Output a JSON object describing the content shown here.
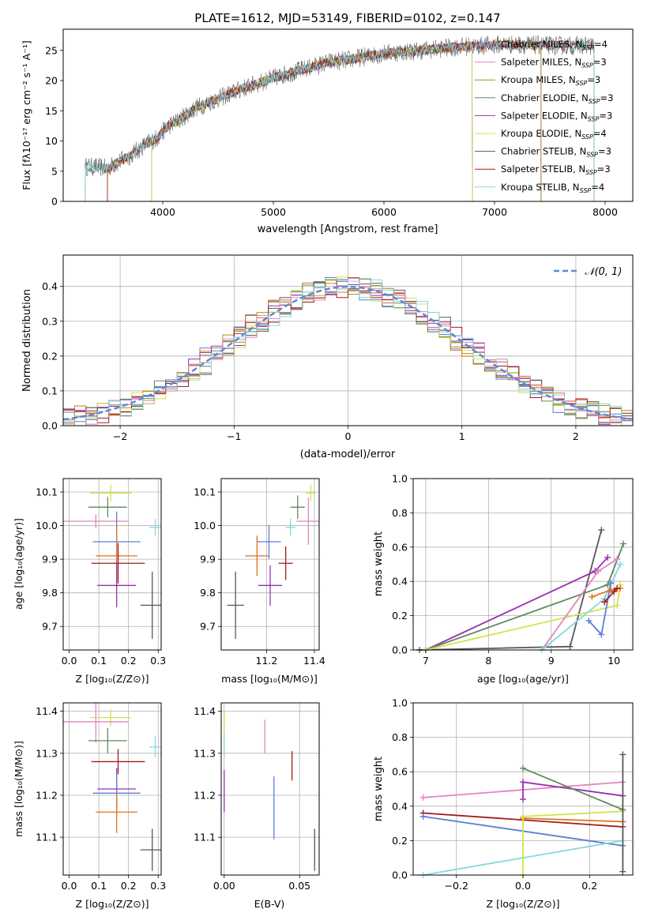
{
  "colors": {
    "blue": "#5B7FD6",
    "orange": "#E0721B",
    "olive": "#A89010",
    "green": "#5E8A5E",
    "purple": "#9A2FB0",
    "yellow": "#D2E24C",
    "gray": "#585858",
    "red": "#A61A1A",
    "pink": "#E384BE",
    "cyan": "#86D8DD",
    "brown": "#8B5A3C",
    "normal": "#5B8AD6"
  },
  "chart_data": [
    {
      "id": "spectrum",
      "type": "line",
      "title": "PLATE=1612, MJD=53149, FIBERID=0102, z=0.147",
      "xlabel": "wavelength [Angstrom, rest frame]",
      "ylabel": "Flux [fλ10⁻¹⁷ erg cm⁻² s⁻¹ A⁻¹]",
      "xlim": [
        3100,
        8250
      ],
      "ylim": [
        0,
        28.5
      ],
      "xticks": [
        4000,
        5000,
        6000,
        7000,
        8000
      ],
      "yticks": [
        0,
        5,
        10,
        15,
        20,
        25
      ],
      "legend_position": "top-right",
      "continuum": {
        "x": [
          3300,
          3500,
          3700,
          3850,
          3950,
          4050,
          4150,
          4300,
          4500,
          4700,
          4900,
          5100,
          5300,
          5500,
          5700,
          5900,
          6100,
          6300,
          6500,
          6700,
          6900,
          7100,
          7300,
          7500
        ],
        "y": [
          5.8,
          5.5,
          7.5,
          9.5,
          10.5,
          12.5,
          13.5,
          15.5,
          17.0,
          18.5,
          19.8,
          21.0,
          22.0,
          23.0,
          23.5,
          24.2,
          24.7,
          24.9,
          25.3,
          25.6,
          25.8,
          26.0,
          25.9,
          25.8
        ]
      },
      "models": [
        {
          "name": "Chabrier MILES, N$_{SSP}$=4",
          "label_main": "Chabrier MILES, N",
          "label_sub": "SSP",
          "label_tail": "=4",
          "color_key": "blue",
          "range": [
            3500,
            7420
          ]
        },
        {
          "name": "Salpeter MILES, N$_{SSP}$=3",
          "label_main": "Salpeter MILES, N",
          "label_sub": "SSP",
          "label_tail": "=3",
          "color_key": "pink",
          "range": [
            3500,
            7420
          ]
        },
        {
          "name": "Kroupa MILES, N$_{SSP}$=3",
          "label_main": "Kroupa MILES, N",
          "label_sub": "SSP",
          "label_tail": "=3",
          "color_key": "olive",
          "range": [
            3500,
            7420
          ]
        },
        {
          "name": "Chabrier ELODIE, N$_{SSP}$=3",
          "label_main": "Chabrier ELODIE, N",
          "label_sub": "SSP",
          "label_tail": "=3",
          "color_key": "green",
          "range": [
            3900,
            6800
          ]
        },
        {
          "name": "Salpeter ELODIE, N$_{SSP}$=3",
          "label_main": "Salpeter ELODIE, N",
          "label_sub": "SSP",
          "label_tail": "=3",
          "color_key": "purple",
          "range": [
            3900,
            6800
          ]
        },
        {
          "name": "Kroupa ELODIE, N$_{SSP}$=4",
          "label_main": "Kroupa ELODIE, N",
          "label_sub": "SSP",
          "label_tail": "=4",
          "color_key": "yellow",
          "range": [
            3900,
            6800
          ]
        },
        {
          "name": "Chabrier STELIB, N$_{SSP}$=3",
          "label_main": "Chabrier STELIB, N",
          "label_sub": "SSP",
          "label_tail": "=3",
          "color_key": "gray",
          "range": [
            3300,
            7900
          ]
        },
        {
          "name": "Salpeter STELIB, N$_{SSP}$=3",
          "label_main": "Salpeter STELIB, N",
          "label_sub": "SSP",
          "label_tail": "=3",
          "color_key": "red",
          "range": [
            3500,
            7900
          ]
        },
        {
          "name": "Kroupa STELIB, N$_{SSP}$=4",
          "label_main": "Kroupa STELIB, N",
          "label_sub": "SSP",
          "label_tail": "=4",
          "color_key": "cyan",
          "range": [
            3300,
            7900
          ]
        }
      ]
    },
    {
      "id": "residuals",
      "type": "histogram",
      "xlabel": "(data-model)/error",
      "ylabel": "Normed distribution",
      "xlim": [
        -2.5,
        2.5
      ],
      "ylim": [
        0,
        0.49
      ],
      "xticks": [
        -2,
        -1,
        0,
        1,
        2
      ],
      "yticks": [
        0.0,
        0.1,
        0.2,
        0.3,
        0.4
      ],
      "grid": true,
      "legend_position": "top-right",
      "reference_curve": {
        "name": "N(0,1)",
        "label": "𝒩(0, 1)",
        "mean": 0,
        "sigma": 1,
        "color_key": "normal"
      },
      "bin_width": 0.1
    },
    {
      "id": "age-vs-Z",
      "type": "errorbar",
      "xlabel": "Z [log₁₀(Z/Z⊙)]",
      "ylabel": "age  [log₁₀(age/yr)]",
      "xlim": [
        -0.02,
        0.31
      ],
      "ylim": [
        9.63,
        10.14
      ],
      "xticks": [
        0.0,
        0.1,
        0.2,
        0.3
      ],
      "yticks": [
        9.7,
        9.8,
        9.9,
        10.0,
        10.1
      ],
      "grid": true,
      "points": [
        {
          "color_key": "yellow",
          "x": 0.14,
          "xerr": 0.07,
          "y": 10.097,
          "yerr": 0.025
        },
        {
          "color_key": "green",
          "x": 0.13,
          "xerr": 0.065,
          "y": 10.055,
          "yerr": 0.03
        },
        {
          "color_key": "pink",
          "x": 0.09,
          "xerr": 0.11,
          "y": 10.013,
          "yerr": 0.02
        },
        {
          "color_key": "cyan",
          "x": 0.29,
          "xerr": 0.02,
          "y": 9.995,
          "yerr": 0.025
        },
        {
          "color_key": "blue",
          "x": 0.16,
          "xerr": 0.08,
          "y": 9.952,
          "yerr": 0.09
        },
        {
          "color_key": "orange",
          "x": 0.16,
          "xerr": 0.07,
          "y": 9.91,
          "yerr": 0.09
        },
        {
          "color_key": "red",
          "x": 0.165,
          "xerr": 0.09,
          "y": 9.888,
          "yerr": 0.06
        },
        {
          "color_key": "purple",
          "x": 0.16,
          "xerr": 0.065,
          "y": 9.822,
          "yerr": 0.065
        },
        {
          "color_key": "gray",
          "x": 0.28,
          "xerr": 0.04,
          "y": 9.763,
          "yerr": 0.1
        }
      ]
    },
    {
      "id": "age-vs-mass",
      "type": "errorbar",
      "xlabel": "mass [log₁₀(M/M⊙)]",
      "ylabel": "",
      "xlim": [
        11.01,
        11.42
      ],
      "ylim": [
        9.63,
        10.14
      ],
      "xticks": [
        11.2,
        11.4
      ],
      "yticks": [
        9.7,
        9.8,
        9.9,
        10.0,
        10.1
      ],
      "grid": true,
      "points": [
        {
          "color_key": "yellow",
          "x": 11.385,
          "xerr": 0.02,
          "y": 10.097,
          "yerr": 0.025
        },
        {
          "color_key": "green",
          "x": 11.33,
          "xerr": 0.03,
          "y": 10.055,
          "yerr": 0.035
        },
        {
          "color_key": "pink",
          "x": 11.375,
          "xerr": 0.05,
          "y": 10.013,
          "yerr": 0.07
        },
        {
          "color_key": "cyan",
          "x": 11.3,
          "xerr": 0.02,
          "y": 9.995,
          "yerr": 0.025
        },
        {
          "color_key": "blue",
          "x": 11.21,
          "xerr": 0.05,
          "y": 9.952,
          "yerr": 0.05
        },
        {
          "color_key": "orange",
          "x": 11.16,
          "xerr": 0.05,
          "y": 9.91,
          "yerr": 0.06
        },
        {
          "color_key": "red",
          "x": 11.28,
          "xerr": 0.03,
          "y": 9.888,
          "yerr": 0.05
        },
        {
          "color_key": "purple",
          "x": 11.215,
          "xerr": 0.05,
          "y": 9.822,
          "yerr": 0.06
        },
        {
          "color_key": "gray",
          "x": 11.07,
          "xerr": 0.035,
          "y": 9.763,
          "yerr": 0.1
        }
      ]
    },
    {
      "id": "weight-vs-age",
      "type": "line",
      "xlabel": "age  [log₁₀(age/yr)]",
      "ylabel": "mass weight",
      "xlim": [
        6.8,
        10.3
      ],
      "ylim": [
        0,
        1.0
      ],
      "xticks": [
        7,
        8,
        9,
        10
      ],
      "yticks": [
        0.0,
        0.2,
        0.4,
        0.6,
        0.8,
        1.0
      ],
      "grid": true,
      "series": [
        {
          "color_key": "gray",
          "x": [
            6.9,
            9.3,
            9.8
          ],
          "y": [
            0.0,
            0.02,
            0.7
          ]
        },
        {
          "color_key": "purple",
          "x": [
            7.0,
            9.7,
            9.9
          ],
          "y": [
            0.0,
            0.46,
            0.54
          ]
        },
        {
          "color_key": "green",
          "x": [
            7.0,
            9.9,
            10.15
          ],
          "y": [
            0.0,
            0.38,
            0.62
          ]
        },
        {
          "color_key": "yellow",
          "x": [
            7.0,
            10.05,
            10.1
          ],
          "y": [
            0.0,
            0.26,
            0.38
          ]
        },
        {
          "color_key": "pink",
          "x": [
            8.85,
            9.75,
            10.05
          ],
          "y": [
            0.0,
            0.46,
            0.53
          ]
        },
        {
          "color_key": "cyan",
          "x": [
            8.85,
            9.85,
            10.1
          ],
          "y": [
            0.0,
            0.3,
            0.5
          ]
        },
        {
          "color_key": "blue",
          "x": [
            9.6,
            9.8,
            9.95
          ],
          "y": [
            0.17,
            0.09,
            0.39
          ]
        },
        {
          "color_key": "orange",
          "x": [
            9.65,
            9.95,
            10.1
          ],
          "y": [
            0.31,
            0.35,
            0.36
          ]
        },
        {
          "color_key": "red",
          "x": [
            9.85,
            10.0,
            10.05
          ],
          "y": [
            0.28,
            0.34,
            0.36
          ]
        }
      ]
    },
    {
      "id": "mass-vs-Z",
      "type": "errorbar",
      "xlabel": "Z [log₁₀(Z/Z⊙)]",
      "ylabel": "mass [log₁₀(M/M⊙)]",
      "xlim": [
        -0.02,
        0.31
      ],
      "ylim": [
        11.01,
        11.42
      ],
      "xticks": [
        0.0,
        0.1,
        0.2,
        0.3
      ],
      "yticks": [
        11.1,
        11.2,
        11.3,
        11.4
      ],
      "grid": true,
      "points": [
        {
          "color_key": "yellow",
          "x": 0.14,
          "xerr": 0.07,
          "y": 11.385,
          "yerr": 0.02
        },
        {
          "color_key": "pink",
          "x": 0.09,
          "xerr": 0.11,
          "y": 11.375,
          "yerr": 0.05
        },
        {
          "color_key": "green",
          "x": 0.13,
          "xerr": 0.065,
          "y": 11.33,
          "yerr": 0.03
        },
        {
          "color_key": "cyan",
          "x": 0.29,
          "xerr": 0.02,
          "y": 11.315,
          "yerr": 0.025
        },
        {
          "color_key": "red",
          "x": 0.165,
          "xerr": 0.09,
          "y": 11.28,
          "yerr": 0.03
        },
        {
          "color_key": "purple",
          "x": 0.16,
          "xerr": 0.065,
          "y": 11.215,
          "yerr": 0.05
        },
        {
          "color_key": "blue",
          "x": 0.16,
          "xerr": 0.08,
          "y": 11.205,
          "yerr": 0.05
        },
        {
          "color_key": "orange",
          "x": 0.16,
          "xerr": 0.07,
          "y": 11.16,
          "yerr": 0.05
        },
        {
          "color_key": "gray",
          "x": 0.28,
          "xerr": 0.04,
          "y": 11.07,
          "yerr": 0.05
        }
      ]
    },
    {
      "id": "mass-vs-EBV",
      "type": "errorbar",
      "xlabel": "E(B-V)",
      "ylabel": "",
      "xlim": [
        -0.002,
        0.063
      ],
      "ylim": [
        11.01,
        11.42
      ],
      "xticks": [
        0.0,
        0.05
      ],
      "yticks": [
        11.1,
        11.2,
        11.3,
        11.4
      ],
      "grid": true,
      "points": [
        {
          "color_key": "yellow",
          "x": 0.0,
          "xerr": 0,
          "y": 11.36,
          "yerr": 0.04
        },
        {
          "color_key": "cyan",
          "x": 0.0,
          "xerr": 0,
          "y": 11.32,
          "yerr": 0.03
        },
        {
          "color_key": "purple",
          "x": 0.0,
          "xerr": 0,
          "y": 11.21,
          "yerr": 0.05
        },
        {
          "color_key": "pink",
          "x": 0.027,
          "xerr": 0,
          "y": 11.34,
          "yerr": 0.04
        },
        {
          "color_key": "red",
          "x": 0.045,
          "xerr": 0,
          "y": 11.27,
          "yerr": 0.035
        },
        {
          "color_key": "blue",
          "x": 0.033,
          "xerr": 0,
          "y": 11.17,
          "yerr": 0.075
        },
        {
          "color_key": "gray",
          "x": 0.06,
          "xerr": 0,
          "y": 11.07,
          "yerr": 0.05
        }
      ]
    },
    {
      "id": "weight-vs-Z",
      "type": "line",
      "xlabel": "Z [log₁₀(Z/Z⊙)]",
      "ylabel": "mass weight",
      "xlim": [
        -0.33,
        0.33
      ],
      "ylim": [
        0,
        1.0
      ],
      "xticks": [
        -0.2,
        0.0,
        0.2
      ],
      "yticks": [
        0.0,
        0.2,
        0.4,
        0.6,
        0.8,
        1.0
      ],
      "grid": true,
      "series": [
        {
          "color_key": "pink",
          "x": [
            -0.3,
            0.3
          ],
          "y": [
            0.45,
            0.54
          ]
        },
        {
          "color_key": "red",
          "x": [
            -0.3,
            0.3
          ],
          "y": [
            0.36,
            0.28
          ]
        },
        {
          "color_key": "blue",
          "x": [
            -0.3,
            0.3
          ],
          "y": [
            0.34,
            0.17
          ]
        },
        {
          "color_key": "cyan",
          "x": [
            -0.3,
            0.0,
            0.3
          ],
          "y": [
            0.0,
            0.1,
            0.2
          ]
        },
        {
          "color_key": "orange",
          "x": [
            0.0,
            0.3
          ],
          "y": [
            0.33,
            0.31
          ]
        },
        {
          "color_key": "yellow",
          "x": [
            0.0,
            0.0,
            0.3
          ],
          "y": [
            0.0,
            0.34,
            0.37
          ]
        },
        {
          "color_key": "purple",
          "x": [
            0.0,
            0.0,
            0.3
          ],
          "y": [
            0.44,
            0.54,
            0.46
          ]
        },
        {
          "color_key": "green",
          "x": [
            0.0,
            0.3
          ],
          "y": [
            0.62,
            0.38
          ]
        },
        {
          "color_key": "gray",
          "x": [
            0.3,
            0.3
          ],
          "y": [
            0.02,
            0.7
          ]
        }
      ]
    }
  ]
}
